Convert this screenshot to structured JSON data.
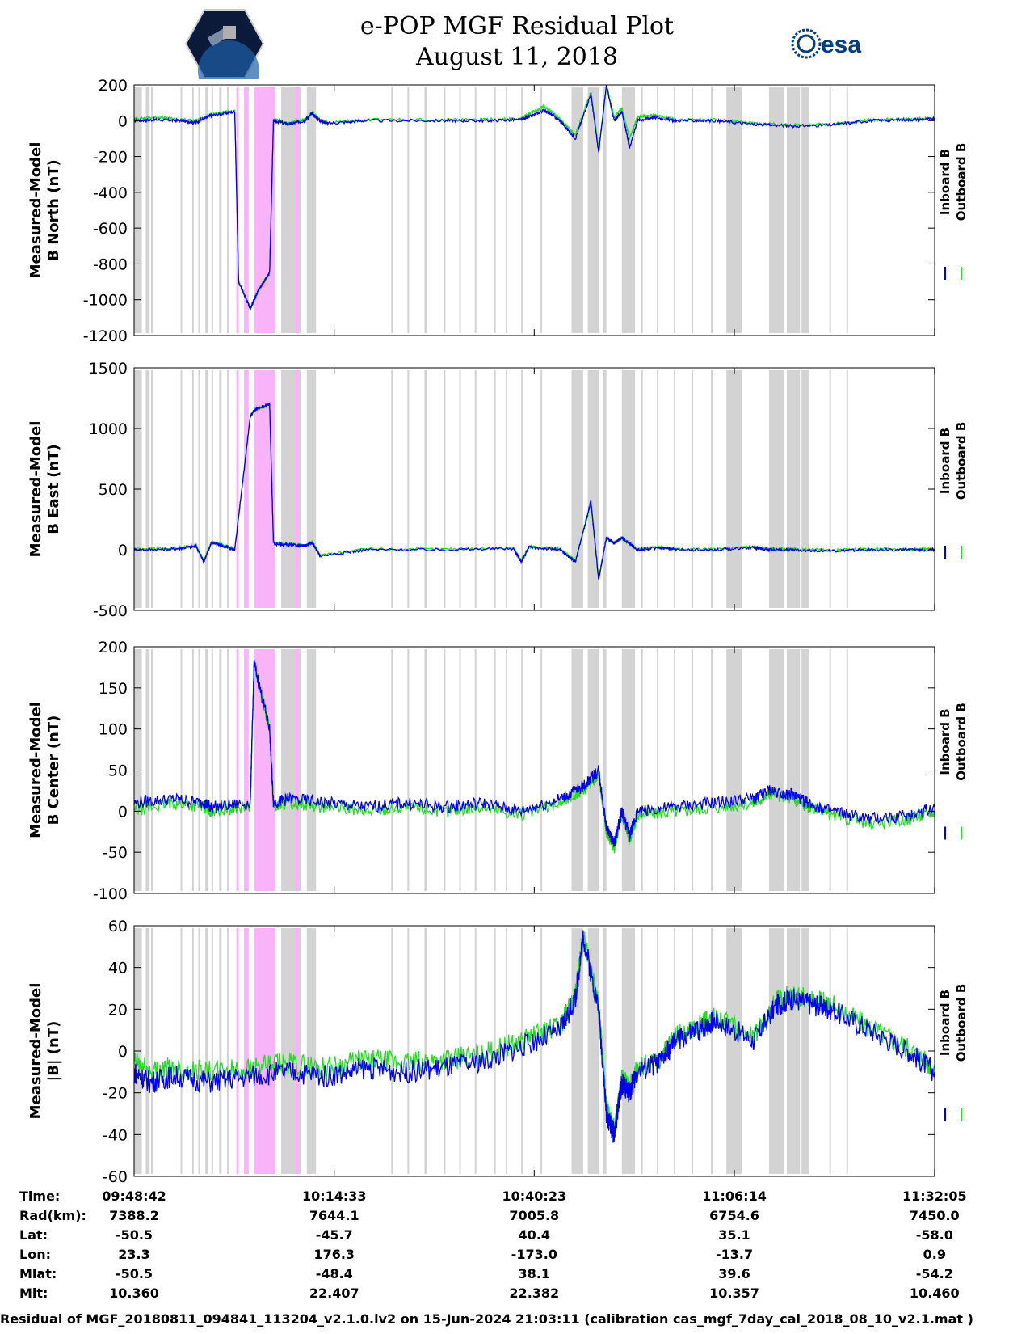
{
  "title_line1": "e-POP MGF Residual Plot",
  "title_line2": "August 11, 2018",
  "logos": {
    "left": "CASSIOPE mission logo",
    "right": "esa"
  },
  "footer": "Residual of MGF_20180811_094841_113204_v2.1.0.lv2 on 15-Jun-2024 21:03:11 (calibration cas_mgf_7day_cal_2018_08_10_v2.1.mat )",
  "colors": {
    "inboard": "#0000ee",
    "outboard": "#22dd22",
    "gap_gray": "#d3d3d3",
    "gap_pink": "#f9b4f9"
  },
  "info_table": {
    "labels": [
      "Time:",
      "Rad(km):",
      "Lat:",
      "Lon:",
      "Mlat:",
      "Mlt:"
    ],
    "columns": [
      [
        "09:48:42",
        "7388.2",
        "-50.5",
        "23.3",
        "-50.5",
        "10.360"
      ],
      [
        "10:14:33",
        "7644.1",
        "-45.7",
        "176.3",
        "-48.4",
        "22.407"
      ],
      [
        "10:40:23",
        "7005.8",
        "40.4",
        "-173.0",
        "38.1",
        "22.382"
      ],
      [
        "11:06:14",
        "6754.6",
        "35.1",
        "-13.7",
        "39.6",
        "10.357"
      ],
      [
        "11:32:05",
        "7450.0",
        "-58.0",
        "0.9",
        "-54.2",
        "10.460"
      ]
    ]
  },
  "chart_data": [
    {
      "type": "line",
      "ylabel": [
        "Measured-Model",
        "B North (nT)"
      ],
      "legend": [
        "Inboard B",
        "Outboard B"
      ],
      "ylim": [
        -1200,
        200
      ],
      "yticks": [
        200,
        0,
        -200,
        -400,
        -600,
        -800,
        -1000,
        -1200
      ],
      "x_minutes": [
        0,
        3,
        6,
        8,
        10,
        13,
        13.5,
        15,
        15.5,
        16,
        17.5,
        18,
        20,
        22,
        23,
        24,
        25,
        30,
        40,
        45,
        50,
        51,
        53,
        55,
        57,
        59,
        60,
        61,
        62,
        63,
        64,
        65,
        67,
        70,
        75,
        80,
        85,
        90,
        95,
        100,
        103.4
      ],
      "series": [
        {
          "name": "Inboard B",
          "values": [
            0,
            5,
            0,
            -10,
            30,
            50,
            -900,
            -1050,
            -1000,
            -950,
            -850,
            0,
            -20,
            0,
            40,
            0,
            -15,
            0,
            0,
            0,
            5,
            20,
            60,
            0,
            -100,
            150,
            -180,
            200,
            0,
            50,
            -150,
            0,
            20,
            0,
            0,
            -20,
            -30,
            -25,
            0,
            5,
            10
          ]
        },
        {
          "name": "Outboard B",
          "values": [
            10,
            20,
            5,
            0,
            35,
            55,
            -900,
            -1050,
            -1000,
            -950,
            -850,
            5,
            -15,
            5,
            45,
            5,
            -10,
            5,
            5,
            5,
            10,
            40,
            80,
            10,
            -80,
            160,
            -160,
            190,
            20,
            70,
            -100,
            20,
            30,
            5,
            5,
            -15,
            -25,
            -20,
            5,
            8,
            12
          ]
        }
      ]
    },
    {
      "type": "line",
      "ylabel": [
        "Measured-Model",
        "B East (nT)"
      ],
      "legend": [
        "Inboard B",
        "Outboard B"
      ],
      "ylim": [
        -500,
        1500
      ],
      "yticks": [
        1500,
        1000,
        500,
        0,
        -500
      ],
      "x_minutes": [
        0,
        5,
        8,
        9,
        10,
        12,
        13,
        15,
        15.5,
        17.5,
        18,
        20,
        22,
        23,
        24,
        30,
        40,
        49,
        50,
        51,
        55,
        57,
        59,
        60,
        61,
        62,
        63,
        65,
        68,
        70,
        75,
        80,
        82,
        85,
        90,
        95,
        100,
        103.4
      ],
      "series": [
        {
          "name": "Inboard B",
          "values": [
            0,
            5,
            30,
            -100,
            60,
            20,
            0,
            1100,
            1150,
            1200,
            50,
            40,
            30,
            60,
            -50,
            0,
            0,
            10,
            -100,
            20,
            0,
            -100,
            400,
            -250,
            100,
            50,
            100,
            0,
            20,
            0,
            0,
            20,
            0,
            0,
            -10,
            0,
            0,
            0
          ]
        },
        {
          "name": "Outboard B",
          "values": [
            10,
            10,
            35,
            -90,
            65,
            25,
            5,
            1100,
            1150,
            1200,
            55,
            45,
            35,
            65,
            -45,
            5,
            5,
            15,
            -90,
            25,
            5,
            -90,
            380,
            -230,
            95,
            55,
            95,
            5,
            25,
            5,
            5,
            25,
            5,
            5,
            -5,
            5,
            5,
            5
          ]
        }
      ]
    },
    {
      "type": "line",
      "ylabel": [
        "Measured-Model",
        "B Center (nT)"
      ],
      "legend": [
        "Inboard B",
        "Outboard B"
      ],
      "ylim": [
        -100,
        200
      ],
      "yticks": [
        200,
        150,
        100,
        50,
        0,
        -50,
        -100
      ],
      "x_minutes": [
        0,
        5,
        9,
        10,
        15,
        15.5,
        17.5,
        18,
        20,
        25,
        30,
        35,
        40,
        45,
        50,
        55,
        58,
        60,
        61,
        62,
        63,
        64,
        65,
        70,
        75,
        80,
        82,
        85,
        87,
        90,
        95,
        100,
        103.4
      ],
      "series": [
        {
          "name": "Inboard B",
          "values": [
            10,
            15,
            10,
            5,
            10,
            180,
            100,
            10,
            15,
            10,
            5,
            10,
            5,
            10,
            0,
            15,
            30,
            50,
            -20,
            -40,
            0,
            -30,
            0,
            5,
            10,
            15,
            25,
            20,
            10,
            0,
            -10,
            -5,
            5
          ]
        },
        {
          "name": "Outboard B",
          "values": [
            0,
            10,
            5,
            0,
            5,
            180,
            100,
            5,
            10,
            5,
            0,
            5,
            0,
            5,
            -5,
            10,
            25,
            45,
            -25,
            -45,
            -5,
            -35,
            -5,
            0,
            5,
            10,
            20,
            15,
            5,
            -5,
            -15,
            -10,
            0
          ]
        }
      ]
    },
    {
      "type": "line",
      "ylabel": [
        "Measured-Model",
        "|B| (nT)"
      ],
      "legend": [
        "Inboard B",
        "Outboard B"
      ],
      "ylim": [
        -60,
        60
      ],
      "yticks": [
        60,
        40,
        20,
        0,
        -20,
        -40,
        -60
      ],
      "x_minutes": [
        0,
        2,
        5,
        10,
        15,
        20,
        25,
        30,
        35,
        40,
        45,
        50,
        55,
        57,
        58,
        60,
        61,
        62,
        63,
        64,
        65,
        68,
        70,
        73,
        75,
        80,
        83,
        85,
        88,
        90,
        95,
        100,
        103.4
      ],
      "series": [
        {
          "name": "Inboard B",
          "values": [
            -10,
            -15,
            -12,
            -15,
            -12,
            -10,
            -12,
            -8,
            -10,
            -8,
            -5,
            2,
            10,
            25,
            55,
            20,
            -30,
            -40,
            -15,
            -20,
            -10,
            -5,
            5,
            10,
            15,
            5,
            22,
            25,
            22,
            20,
            10,
            0,
            -10
          ]
        },
        {
          "name": "Outboard B",
          "values": [
            -5,
            -10,
            -8,
            -10,
            -8,
            -6,
            -8,
            -4,
            -6,
            -4,
            -2,
            5,
            12,
            27,
            55,
            22,
            -28,
            -38,
            -12,
            -18,
            -8,
            -3,
            7,
            12,
            17,
            7,
            24,
            27,
            24,
            22,
            12,
            2,
            -8
          ]
        }
      ]
    }
  ]
}
